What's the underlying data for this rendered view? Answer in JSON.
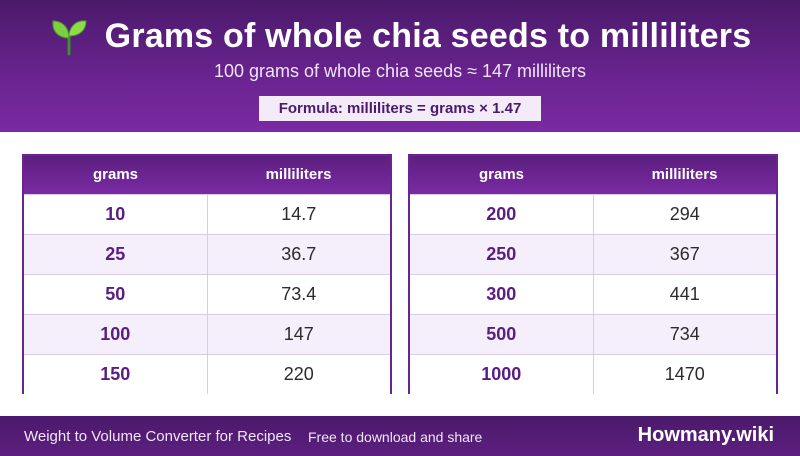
{
  "header": {
    "title": "Grams of whole chia seeds to milliliters",
    "icon": "seedling-icon",
    "subtitle": "100 grams of whole chia seeds ≈ 147 milliliters",
    "formula": "Formula: milliliters = grams × 1.47"
  },
  "tables": [
    {
      "headers": [
        "grams",
        "milliliters"
      ],
      "rows": [
        {
          "grams": "10",
          "ml": "14.7"
        },
        {
          "grams": "25",
          "ml": "36.7"
        },
        {
          "grams": "50",
          "ml": "73.4"
        },
        {
          "grams": "100",
          "ml": "147"
        },
        {
          "grams": "150",
          "ml": "220"
        }
      ]
    },
    {
      "headers": [
        "grams",
        "milliliters"
      ],
      "rows": [
        {
          "grams": "200",
          "ml": "294"
        },
        {
          "grams": "250",
          "ml": "367"
        },
        {
          "grams": "300",
          "ml": "441"
        },
        {
          "grams": "500",
          "ml": "734"
        },
        {
          "grams": "1000",
          "ml": "1470"
        }
      ]
    }
  ],
  "footer": {
    "left": "Weight to Volume Converter for Recipes",
    "middle": "Free to download and share",
    "brand": "Howmany.wiki"
  },
  "colors": {
    "brand_purple": "#6a2490",
    "dark_purple": "#4b1a6b",
    "gram_text": "#5a1e82",
    "row_alt": "#f4effa"
  }
}
